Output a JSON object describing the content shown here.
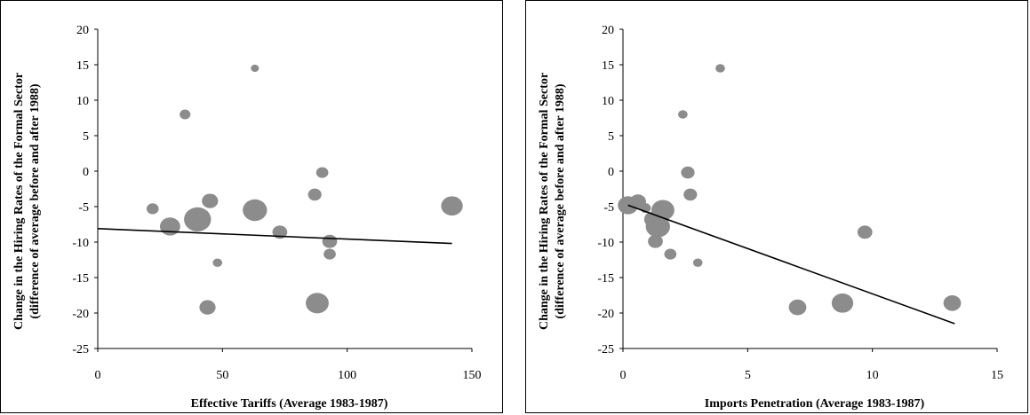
{
  "chart_data": [
    {
      "type": "scatter",
      "title": "",
      "xlabel": "Effective Tariffs (Average 1983-1987)",
      "ylabel_line1": "Change in the Hiring Rates of the Formal Sector",
      "ylabel_line2": "(difference of average before and after 1988)",
      "xlim": [
        0,
        150
      ],
      "ylim": [
        -25,
        20
      ],
      "xticks": [
        0,
        50,
        100,
        150
      ],
      "yticks": [
        20,
        15,
        10,
        5,
        0,
        -5,
        -10,
        -15,
        -20,
        -25
      ],
      "grid": false,
      "marker_color": "#8c8c8c",
      "points": [
        {
          "x": 63,
          "y": 14.5,
          "size": 0.3
        },
        {
          "x": 35,
          "y": 8.0,
          "size": 0.4
        },
        {
          "x": 90,
          "y": -0.2,
          "size": 0.45
        },
        {
          "x": 87,
          "y": -3.3,
          "size": 0.5
        },
        {
          "x": 45,
          "y": -4.2,
          "size": 0.6
        },
        {
          "x": 22,
          "y": -5.3,
          "size": 0.45
        },
        {
          "x": 63,
          "y": -5.5,
          "size": 0.9
        },
        {
          "x": 142,
          "y": -4.9,
          "size": 0.8
        },
        {
          "x": 40,
          "y": -6.8,
          "size": 1.0
        },
        {
          "x": 29,
          "y": -7.8,
          "size": 0.75
        },
        {
          "x": 73,
          "y": -8.6,
          "size": 0.55
        },
        {
          "x": 93,
          "y": -9.9,
          "size": 0.55
        },
        {
          "x": 93,
          "y": -11.7,
          "size": 0.45
        },
        {
          "x": 48,
          "y": -12.9,
          "size": 0.35
        },
        {
          "x": 44,
          "y": -19.2,
          "size": 0.6
        },
        {
          "x": 88,
          "y": -18.6,
          "size": 0.85
        }
      ],
      "trendline": {
        "x": [
          0,
          142
        ],
        "y": [
          -8.1,
          -10.2
        ]
      }
    },
    {
      "type": "scatter",
      "title": "",
      "xlabel": "Imports Penetration (Average 1983-1987)",
      "ylabel_line1": "Change in the Hiring Rates of the Formal Sector",
      "ylabel_line2": "(difference of average before and after 1988)",
      "xlim": [
        0,
        15
      ],
      "ylim": [
        -25,
        20
      ],
      "xticks": [
        0,
        5,
        10,
        15
      ],
      "yticks": [
        20,
        15,
        10,
        5,
        0,
        -5,
        -10,
        -15,
        -20,
        -25
      ],
      "grid": false,
      "marker_color": "#8c8c8c",
      "points": [
        {
          "x": 3.9,
          "y": 14.5,
          "size": 0.35
        },
        {
          "x": 2.4,
          "y": 8.0,
          "size": 0.35
        },
        {
          "x": 2.6,
          "y": -0.2,
          "size": 0.5
        },
        {
          "x": 2.7,
          "y": -3.3,
          "size": 0.5
        },
        {
          "x": 0.2,
          "y": -4.8,
          "size": 0.75
        },
        {
          "x": 0.6,
          "y": -4.3,
          "size": 0.6
        },
        {
          "x": 0.9,
          "y": -5.2,
          "size": 0.4
        },
        {
          "x": 1.6,
          "y": -5.5,
          "size": 0.85
        },
        {
          "x": 1.2,
          "y": -6.8,
          "size": 0.65
        },
        {
          "x": 1.4,
          "y": -7.8,
          "size": 0.9
        },
        {
          "x": 1.3,
          "y": -9.9,
          "size": 0.55
        },
        {
          "x": 1.9,
          "y": -11.7,
          "size": 0.45
        },
        {
          "x": 3.0,
          "y": -12.9,
          "size": 0.35
        },
        {
          "x": 9.7,
          "y": -8.6,
          "size": 0.55
        },
        {
          "x": 7.0,
          "y": -19.2,
          "size": 0.65
        },
        {
          "x": 8.8,
          "y": -18.6,
          "size": 0.8
        },
        {
          "x": 13.2,
          "y": -18.6,
          "size": 0.65
        }
      ],
      "trendline": {
        "x": [
          0.2,
          13.3
        ],
        "y": [
          -4.8,
          -21.5
        ]
      }
    }
  ]
}
